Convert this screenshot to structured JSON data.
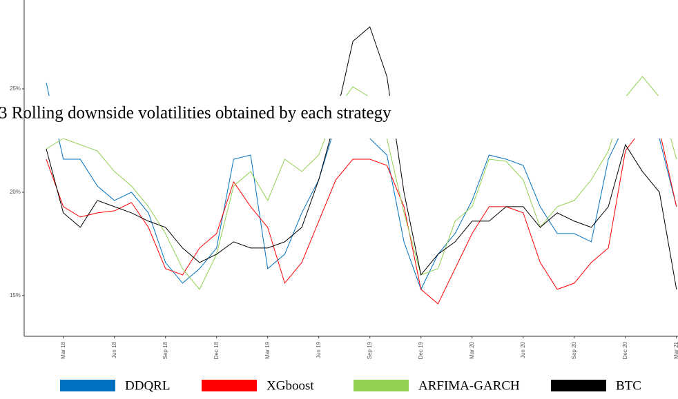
{
  "chart_data": {
    "type": "line",
    "title": "3 Rolling downside volatilities obtained by each strategy",
    "categories": [
      null,
      "Mar 18",
      null,
      null,
      "Jun 18",
      null,
      null,
      "Sep 18",
      null,
      null,
      "Dec 18",
      null,
      null,
      "Mar 19",
      null,
      null,
      "Jun 19",
      null,
      null,
      "Sep 19",
      null,
      null,
      "Dec 19",
      null,
      null,
      "Mar 20",
      null,
      null,
      "Jun 20",
      null,
      null,
      "Sep 20",
      null,
      null,
      "Dec 20",
      null,
      null,
      "Mar 21"
    ],
    "series": [
      {
        "name": "DDQRL",
        "color": "#0070c0",
        "values": [
          25.3,
          21.6,
          21.6,
          20.3,
          19.6,
          20,
          19,
          16.6,
          15.6,
          16.3,
          17.3,
          21.6,
          21.8,
          16.3,
          17,
          19,
          20.6,
          23.3,
          24.3,
          22.6,
          21.8,
          17.6,
          15.3,
          17,
          18,
          19.6,
          21.8,
          21.6,
          21.3,
          19.3,
          18,
          18,
          17.6,
          21.6,
          23.3,
          23.5,
          22.6,
          19.3
        ]
      },
      {
        "name": "XGboost",
        "color": "#ff0000",
        "values": [
          21.6,
          19.3,
          18.8,
          19,
          19.1,
          19.5,
          18.3,
          16.3,
          16,
          17.3,
          18,
          20.5,
          19.3,
          18.3,
          15.6,
          16.6,
          18.6,
          20.6,
          21.6,
          21.6,
          21.3,
          19.3,
          15.3,
          14.6,
          16.3,
          18,
          19.3,
          19.3,
          19,
          16.6,
          15.3,
          15.6,
          16.6,
          17.3,
          22,
          23.1,
          23,
          19.3
        ]
      },
      {
        "name": "ARFIMA-GARCH",
        "color": "#92d050",
        "values": [
          22.1,
          22.6,
          22.3,
          22,
          21,
          20.3,
          19.3,
          18,
          16.3,
          15.3,
          17,
          20.3,
          21,
          19.6,
          21.6,
          21,
          21.8,
          24,
          25.1,
          24.6,
          22.6,
          19,
          16,
          16.3,
          18.6,
          19.3,
          21.6,
          21.5,
          20.6,
          18.3,
          19.3,
          19.6,
          20.6,
          22,
          24.6,
          25.6,
          24.6,
          21.6
        ]
      },
      {
        "name": "BTC",
        "color": "#000000",
        "values": [
          22.1,
          19,
          18.3,
          19.6,
          19.3,
          19,
          18.6,
          18.3,
          17.3,
          16.6,
          17,
          17.6,
          17.3,
          17.3,
          17.6,
          18.3,
          20.6,
          23.6,
          27.3,
          28,
          25.6,
          20,
          16,
          17,
          17.6,
          18.6,
          18.6,
          19.3,
          19.3,
          18.3,
          19,
          18.6,
          18.3,
          19.3,
          22.3,
          21,
          20,
          15.3
        ]
      }
    ],
    "ylim": [
      13.03,
      29.3
    ],
    "yticks": [
      {
        "value": 15,
        "label": "15%"
      },
      {
        "value": 20,
        "label": "20%"
      },
      {
        "value": 25,
        "label": "25%"
      }
    ],
    "legend": "bottom"
  }
}
